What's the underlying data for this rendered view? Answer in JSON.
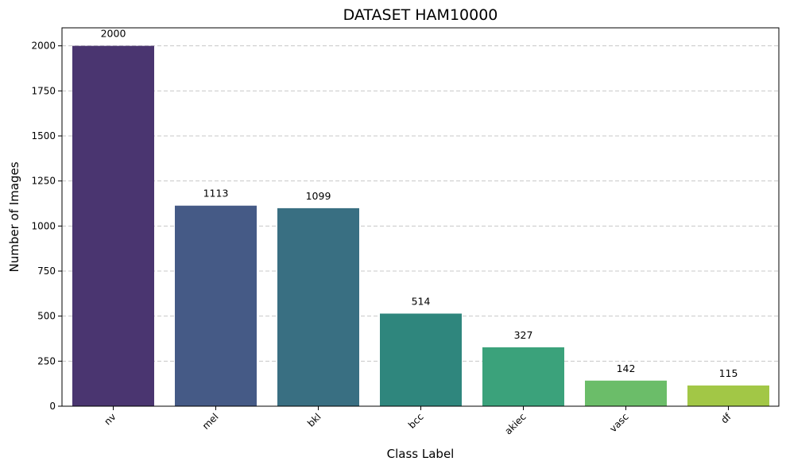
{
  "chart_data": {
    "type": "bar",
    "title": "DATASET HAM10000",
    "xlabel": "Class Label",
    "ylabel": "Number of Images",
    "categories": [
      "nv",
      "mel",
      "bkl",
      "bcc",
      "akiec",
      "vasc",
      "df"
    ],
    "values": [
      2000,
      1113,
      1099,
      514,
      327,
      142,
      115
    ],
    "data_labels": [
      "2000",
      "1113",
      "1099",
      "514",
      "327",
      "142",
      "115"
    ],
    "colors": [
      "#4a3570",
      "#455a86",
      "#396f82",
      "#2f867d",
      "#3ba27b",
      "#6bbd69",
      "#a2c746"
    ],
    "ylim": [
      0,
      2100
    ],
    "yticks": [
      0,
      250,
      500,
      750,
      1000,
      1250,
      1500,
      1750,
      2000
    ],
    "ytick_labels": [
      "0",
      "250",
      "500",
      "750",
      "1000",
      "1250",
      "1500",
      "1750",
      "2000"
    ],
    "grid": "horizontal dashed"
  }
}
